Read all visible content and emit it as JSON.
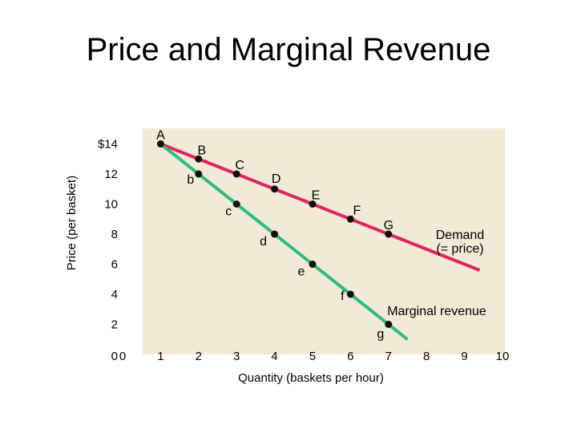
{
  "title": "Price and Marginal Revenue",
  "chart_data": {
    "type": "line",
    "xlabel": "Quantity (baskets per hour)",
    "ylabel": "Price (per basket)",
    "xlim": [
      0,
      10
    ],
    "ylim": [
      0,
      14
    ],
    "x_ticks": [
      "0",
      "1",
      "2",
      "3",
      "4",
      "5",
      "6",
      "7",
      "8",
      "9",
      "10"
    ],
    "y_ticks": [
      "0",
      "2",
      "4",
      "6",
      "8",
      "10",
      "12",
      "$14"
    ],
    "grid": false,
    "background_color": "#f3ead6",
    "series": [
      {
        "name": "Demand (= price)",
        "label_lines": [
          "Demand",
          "(= price)"
        ],
        "color": "#e0245e",
        "x": [
          1,
          2,
          3,
          4,
          5,
          6,
          7,
          9.4
        ],
        "y": [
          14,
          13,
          12,
          11,
          10,
          9,
          8,
          5.6
        ],
        "points": [
          {
            "x": 1,
            "y": 14,
            "label": "A"
          },
          {
            "x": 2,
            "y": 13,
            "label": "B"
          },
          {
            "x": 3,
            "y": 12,
            "label": "C"
          },
          {
            "x": 4,
            "y": 11,
            "label": "D"
          },
          {
            "x": 5,
            "y": 10,
            "label": "E"
          },
          {
            "x": 6,
            "y": 9,
            "label": "F"
          },
          {
            "x": 7,
            "y": 8,
            "label": "G"
          }
        ]
      },
      {
        "name": "Marginal revenue",
        "label_lines": [
          "Marginal revenue"
        ],
        "color": "#2ebd7a",
        "x": [
          1,
          2,
          3,
          4,
          5,
          6,
          7,
          7.5
        ],
        "y": [
          14,
          12,
          10,
          8,
          6,
          4,
          2,
          1
        ],
        "points": [
          {
            "x": 2,
            "y": 12,
            "label": "b"
          },
          {
            "x": 3,
            "y": 10,
            "label": "c"
          },
          {
            "x": 4,
            "y": 8,
            "label": "d"
          },
          {
            "x": 5,
            "y": 6,
            "label": "e"
          },
          {
            "x": 6,
            "y": 4,
            "label": "f"
          },
          {
            "x": 7,
            "y": 2,
            "label": "g"
          }
        ]
      }
    ]
  }
}
